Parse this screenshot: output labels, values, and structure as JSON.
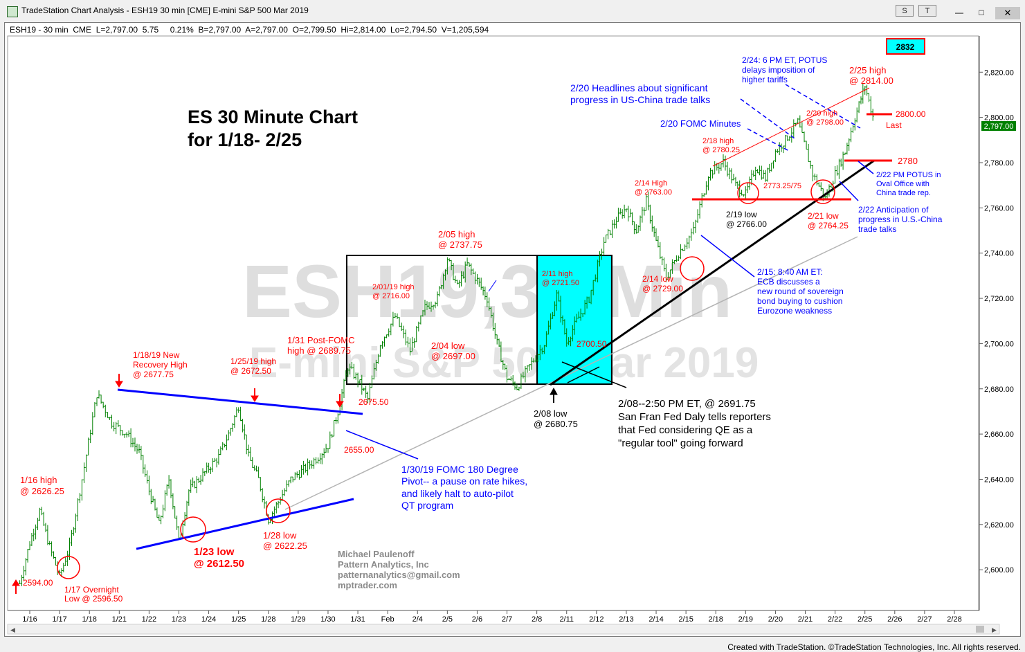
{
  "window": {
    "title": "TradeStation Chart Analysis - ESH19 30 min [CME] E-mini S&P 500 Mar 2019",
    "btn_s": "S",
    "btn_t": "T",
    "footer": "Created with TradeStation. ©TradeStation Technologies, Inc. All rights reserved."
  },
  "colors": {
    "bar": "#008000",
    "annotation_red": "#ff0000",
    "annotation_blue": "#0000ff",
    "trendline_blue": "#0000ff",
    "box_cyan": "#00ffff",
    "price_tag": "#008000"
  },
  "chart_data": {
    "type": "line",
    "style": "ohlc-bars",
    "series": [
      {
        "name": "ESH19 - 30 min CME",
        "x": [
          "1/16",
          "1/16",
          "1/16",
          "1/17",
          "1/17",
          "1/17",
          "1/18",
          "1/18",
          "1/21",
          "1/21",
          "1/22",
          "1/22",
          "1/22",
          "1/23",
          "1/23",
          "1/23",
          "1/24",
          "1/24",
          "1/24",
          "1/25",
          "1/25",
          "1/25",
          "1/28",
          "1/28",
          "1/28",
          "1/29",
          "1/29",
          "1/30",
          "1/30",
          "1/30",
          "1/31",
          "1/31",
          "1/31",
          "Feb",
          "Feb",
          "2/4",
          "2/4",
          "2/5",
          "2/5",
          "2/5",
          "2/6",
          "2/6",
          "2/6",
          "2/7",
          "2/7",
          "2/7",
          "2/8",
          "2/8",
          "2/11",
          "2/11",
          "2/11",
          "2/12",
          "2/12",
          "2/13",
          "2/13",
          "2/13",
          "2/14",
          "2/14",
          "2/14",
          "2/15",
          "2/15",
          "2/18",
          "2/18",
          "2/19",
          "2/19",
          "2/19",
          "2/20",
          "2/20",
          "2/20",
          "2/21",
          "2/21",
          "2/22",
          "2/22",
          "2/22",
          "2/25",
          "2/25",
          "2/25"
        ],
        "values": [
          2594,
          2612,
          2626,
          2610,
          2597,
          2610,
          2640,
          2677.75,
          2665,
          2660,
          2652,
          2635,
          2620,
          2640,
          2612.5,
          2635,
          2640,
          2645,
          2650,
          2660,
          2672.5,
          2650,
          2640,
          2622.25,
          2630,
          2640,
          2645,
          2650,
          2655,
          2670,
          2689.75,
          2684,
          2675.5,
          2700,
          2712,
          2697,
          2716,
          2720,
          2737.75,
          2725,
          2735,
          2728,
          2720,
          2700,
          2685,
          2680.75,
          2690,
          2700,
          2721.5,
          2700.5,
          2710,
          2720,
          2745,
          2755,
          2760,
          2750,
          2763,
          2745,
          2729,
          2740,
          2750,
          2775,
          2780.25,
          2770,
          2766,
          2778,
          2773.25,
          2785,
          2790,
          2798,
          2775,
          2764.25,
          2775,
          2785,
          2800,
          2814,
          2797
        ]
      }
    ],
    "title": "",
    "xlabel": "",
    "ylabel": "",
    "ylim": [
      2582,
      2836
    ],
    "grid": false,
    "y_ticks": [
      "2,600.00",
      "2,620.00",
      "2,640.00",
      "2,660.00",
      "2,680.00",
      "2,700.00",
      "2,720.00",
      "2,740.00",
      "2,760.00",
      "2,780.00",
      "2,800.00",
      "2,820.00"
    ],
    "x_ticks": [
      "1/16",
      "1/17",
      "1/18",
      "1/21",
      "1/22",
      "1/23",
      "1/24",
      "1/25",
      "1/28",
      "1/29",
      "1/30",
      "1/31",
      "Feb",
      "2/4",
      "2/5",
      "2/6",
      "2/7",
      "2/8",
      "2/11",
      "2/12",
      "2/13",
      "2/14",
      "2/15",
      "2/18",
      "2/19",
      "2/20",
      "2/21",
      "2/22",
      "2/25",
      "2/26",
      "2/27",
      "2/28"
    ],
    "last_price_tag": "2,797.00",
    "header_line": "ESH19 - 30 min  CME  L=2,797.00  5.75     0.21%  B=2,797.00  A=2,797.00  O=2,799.50  Hi=2,814.00  Lo=2,794.50  V=1,205,594",
    "box_2832": "2832",
    "watermark_1": "ESH19,30 Min",
    "watermark_2": "E-mini S&P 500 Mar 2019",
    "heading": [
      "ES 30 Minute Chart",
      "for 1/18- 2/25"
    ],
    "signature": [
      "Michael Paulenoff",
      "Pattern Analytics, Inc",
      "patternanalytics@gmail.com",
      "mptrader.com"
    ],
    "annotations_red": {
      "a1": "2594.00",
      "a2": [
        "1/16 high",
        "@ 2626.25"
      ],
      "a3": [
        "1/17 Overnight",
        "Low @ 2596.50"
      ],
      "a4": [
        "1/18/19 New",
        "Recovery High",
        "@ 2677.75"
      ],
      "a5": [
        "1/23 low",
        "@ 2612.50"
      ],
      "a6": [
        "1/25/19 high",
        "@ 2672.50"
      ],
      "a7": [
        "1/28 low",
        "@ 2622.25"
      ],
      "a8": [
        "1/31 Post-FOMC",
        "high @ 2689.75"
      ],
      "a9": "2655.00",
      "a10": "2675.50",
      "a11": [
        "2/01/19 high",
        "@ 2716.00"
      ],
      "a12": [
        "2/04 low",
        "@ 2697.00"
      ],
      "a13": [
        "2/05 high",
        "@ 2737.75"
      ],
      "a14": [
        "2/11 high",
        "@ 2721.50"
      ],
      "a15": "2700.50",
      "a16": [
        "2/14 High",
        "@ 2763.00"
      ],
      "a17": [
        "2/14 low",
        "@ 2729.00"
      ],
      "a18": [
        "2/18 high",
        "@ 2780.25"
      ],
      "a19": "2773.25/75",
      "a20": [
        "2/20 high",
        "@ 2798.00"
      ],
      "a21": [
        "2/21 low",
        "@ 2764.25"
      ],
      "a22": [
        "2/25 high",
        "@ 2814.00"
      ],
      "a23": "2800.00",
      "a24": "Last",
      "a25": "2780"
    },
    "annotations_black": {
      "b1": [
        "2/08 low",
        "@ 2680.75"
      ],
      "b2": [
        "2/19 low",
        "@ 2766.00"
      ],
      "b3": [
        "2/08--2:50 PM ET, @ 2691.75",
        "San Fran Fed Daly tells reporters",
        "that Fed considering QE as a",
        "\"regular tool\" going forward"
      ]
    },
    "annotations_blue": {
      "c1": [
        "1/30/19 FOMC 180 Degree",
        "Pivot-- a pause on rate hikes,",
        "and likely halt to auto-pilot",
        "QT program"
      ],
      "c2": [
        "2/20 Headlines about significant",
        "progress in US-China trade talks"
      ],
      "c3": "2/20 FOMC Minutes",
      "c4": [
        "2/24: 6 PM ET, POTUS",
        "delays imposition of",
        "higher tariffs"
      ],
      "c5": [
        "2/22 PM POTUS in",
        "Oval Office with",
        "China trade rep."
      ],
      "c6": [
        "2/22 Anticipation of",
        "progress in U.S.-China",
        "trade talks"
      ],
      "c7": [
        "2/15: 8:40 AM ET:",
        "ECB discusses a",
        "new round of sovereign",
        "bond buying to cushion",
        "Eurozone weakness"
      ]
    }
  }
}
